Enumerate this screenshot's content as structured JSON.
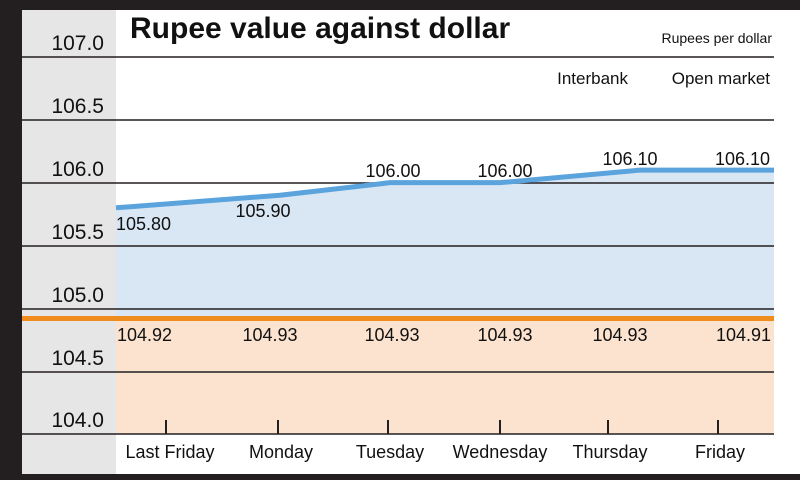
{
  "chart_data": {
    "type": "area",
    "title": "Rupee value against dollar",
    "subtitle": "Rupees per dollar",
    "categories": [
      "Last Friday",
      "Monday",
      "Tuesday",
      "Wednesday",
      "Thursday",
      "Friday"
    ],
    "yticks": [
      "107.0",
      "106.5",
      "106.0",
      "105.5",
      "105.0",
      "104.5",
      "104.0"
    ],
    "ylim": [
      104.0,
      107.0
    ],
    "grid": true,
    "legend_position": "top-right",
    "series": [
      {
        "name": "Interbank",
        "values": [
          105.8,
          105.9,
          106.0,
          106.0,
          106.1,
          106.1
        ],
        "labels": [
          "105.80",
          "105.90",
          "106.00",
          "106.00",
          "106.10",
          "106.10"
        ],
        "color": "#5ba3dc",
        "fill": "#d9e7f5"
      },
      {
        "name": "Open market",
        "values": [
          104.92,
          104.93,
          104.93,
          104.93,
          104.93,
          104.91
        ],
        "labels": [
          "104.92",
          "104.93",
          "104.93",
          "104.93",
          "104.93",
          "104.91"
        ],
        "color": "#f08c1e",
        "fill": "#fbe3cf"
      }
    ]
  }
}
